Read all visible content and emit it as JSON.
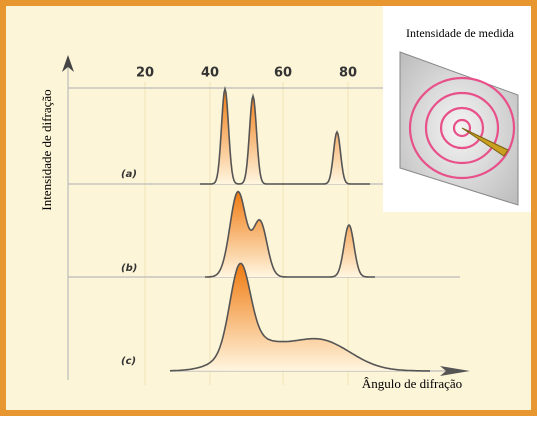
{
  "inset": {
    "label": "Intensidade de medida"
  },
  "axes": {
    "y_label": "Intensidade de difração",
    "x_label": "Ângulo de difração",
    "x_ticks": [
      20,
      40,
      60,
      80
    ]
  },
  "patterns": [
    {
      "label": "(a)"
    },
    {
      "label": "(b)"
    },
    {
      "label": "(c)"
    }
  ]
}
